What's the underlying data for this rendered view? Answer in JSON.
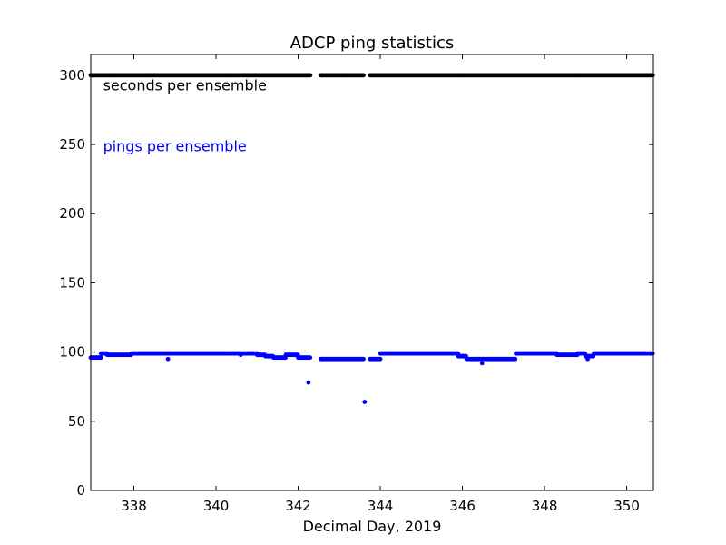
{
  "chart_data": {
    "type": "scatter",
    "title": "ADCP  ping statistics",
    "xlabel": "Decimal Day, 2019",
    "ylabel": "",
    "xlim": [
      336.95,
      350.65
    ],
    "ylim": [
      0,
      315
    ],
    "xticks": [
      338,
      340,
      342,
      344,
      346,
      348,
      350
    ],
    "yticks": [
      0,
      50,
      100,
      150,
      200,
      250,
      300
    ],
    "grid": false,
    "annotations": [
      {
        "text": "seconds per ensemble",
        "color": "#000000",
        "x": 337.25,
        "y": 289
      },
      {
        "text": "pings per ensemble",
        "color": "#0000ff",
        "x": 337.25,
        "y": 245
      }
    ],
    "series": [
      {
        "name": "seconds per ensemble",
        "color": "#000000",
        "step": 0.0208,
        "segments": [
          [
            336.95,
            342.3,
            300
          ],
          [
            342.55,
            343.6,
            300
          ],
          [
            343.75,
            350.65,
            300
          ]
        ],
        "points": []
      },
      {
        "name": "pings per ensemble",
        "color": "#0000ff",
        "step": 0.0208,
        "segments": [
          [
            336.95,
            337.2,
            96
          ],
          [
            337.2,
            337.35,
            99
          ],
          [
            337.35,
            337.95,
            98
          ],
          [
            337.95,
            338.85,
            99
          ],
          [
            338.85,
            339.7,
            99
          ],
          [
            339.7,
            340.5,
            99
          ],
          [
            340.5,
            341.0,
            99
          ],
          [
            341.0,
            341.2,
            98
          ],
          [
            341.2,
            341.4,
            97
          ],
          [
            341.4,
            341.7,
            96
          ],
          [
            341.7,
            342.0,
            98
          ],
          [
            342.0,
            342.3,
            96
          ],
          [
            342.55,
            343.6,
            95
          ],
          [
            343.75,
            344.0,
            95
          ],
          [
            344.0,
            345.9,
            99
          ],
          [
            345.9,
            346.1,
            97
          ],
          [
            346.1,
            347.3,
            95
          ],
          [
            347.3,
            348.3,
            99
          ],
          [
            348.3,
            348.8,
            98
          ],
          [
            348.8,
            349.0,
            99
          ],
          [
            349.0,
            349.2,
            97
          ],
          [
            349.2,
            350.65,
            99
          ]
        ],
        "points": [
          [
            338.83,
            95
          ],
          [
            340.6,
            98
          ],
          [
            342.25,
            78
          ],
          [
            343.62,
            64
          ],
          [
            346.48,
            92
          ],
          [
            349.05,
            95
          ]
        ]
      }
    ]
  }
}
